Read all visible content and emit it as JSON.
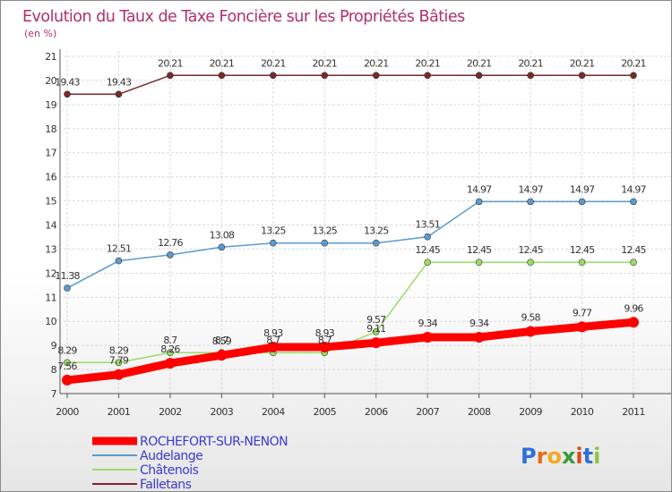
{
  "chart_data": {
    "type": "line",
    "title": "Evolution du Taux de Taxe Foncière sur les Propriétés Bâties",
    "subtitle": "(en %)",
    "x": [
      "2000",
      "2001",
      "2002",
      "2003",
      "2004",
      "2005",
      "2006",
      "2007",
      "2008",
      "2009",
      "2010",
      "2011"
    ],
    "ylim": [
      7,
      21
    ],
    "yticks": [
      "7",
      "8",
      "9",
      "10",
      "11",
      "12",
      "13",
      "14",
      "15",
      "16",
      "17",
      "18",
      "19",
      "20",
      "21"
    ],
    "grid": true,
    "series": [
      {
        "name": "Falletans",
        "color": "#7a2a2a",
        "values": [
          19.43,
          19.43,
          20.21,
          20.21,
          20.21,
          20.21,
          20.21,
          20.21,
          20.21,
          20.21,
          20.21,
          20.21
        ],
        "labels": [
          "19.43",
          "19.43",
          "20.21",
          "20.21",
          "20.21",
          "20.21",
          "20.21",
          "20.21",
          "20.21",
          "20.21",
          "20.21",
          "20.21"
        ]
      },
      {
        "name": "Audelange",
        "color": "#5b9bd1",
        "values": [
          11.38,
          12.51,
          12.76,
          13.08,
          13.25,
          13.25,
          13.25,
          13.51,
          14.97,
          14.97,
          14.97,
          14.97
        ],
        "labels": [
          "11.38",
          "12.51",
          "12.76",
          "13.08",
          "13.25",
          "13.25",
          "13.25",
          "13.51",
          "14.97",
          "14.97",
          "14.97",
          "14.97"
        ]
      },
      {
        "name": "Châtenois",
        "color": "#99dd66",
        "values": [
          8.29,
          8.29,
          8.7,
          8.7,
          8.7,
          8.7,
          9.57,
          12.45,
          12.45,
          12.45,
          12.45,
          12.45
        ],
        "labels": [
          "8.29",
          "8.29",
          "8.7",
          "8.7",
          "8.7",
          "8.7",
          "9.57",
          "12.45",
          "12.45",
          "12.45",
          "12.45",
          "12.45"
        ]
      },
      {
        "name": "ROCHEFORT-SUR-NENON",
        "color": "#ff0000",
        "values": [
          7.56,
          7.79,
          8.26,
          8.59,
          8.93,
          8.93,
          9.11,
          9.34,
          9.34,
          9.58,
          9.77,
          9.96
        ],
        "labels": [
          "7.56",
          "7.79",
          "8.26",
          "8.59",
          "8.93",
          "8.93",
          "9.11",
          "9.34",
          "9.34",
          "9.58",
          "9.77",
          "9.96"
        ]
      }
    ],
    "legend": [
      "ROCHEFORT-SUR-NENON",
      "Audelange",
      "Châtenois",
      "Falletans"
    ],
    "legend_position": "bottom-left"
  },
  "logo": {
    "text": "Proxiti",
    "letters": [
      "P",
      "r",
      "o",
      "x",
      "i",
      "t",
      "i"
    ],
    "colors": [
      "#2e6fd8",
      "#e86a1a",
      "#f2a823",
      "#3a9a3a",
      "#d84a1a",
      "#2e6fd8",
      "#8cc63f"
    ]
  }
}
